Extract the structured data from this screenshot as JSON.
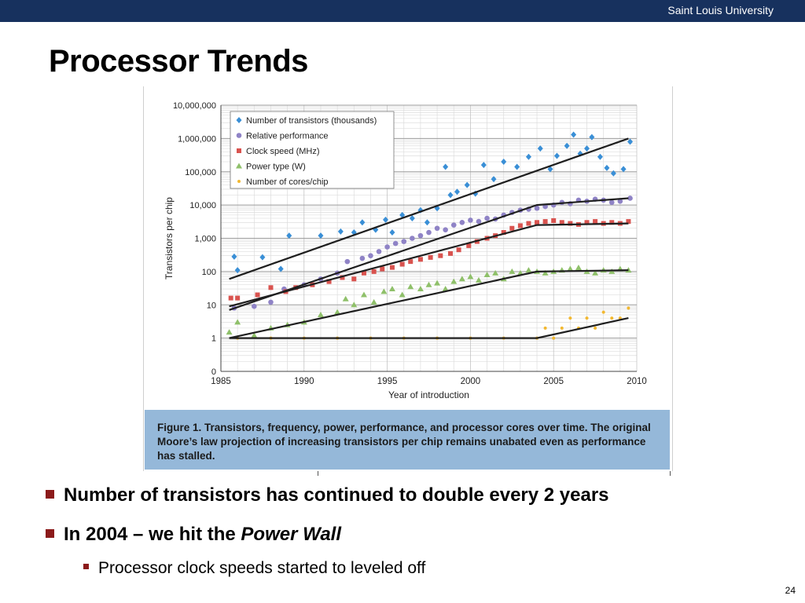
{
  "header": {
    "university": "Saint Louis University"
  },
  "slide": {
    "title": "Processor Trends",
    "bullets": [
      {
        "text": "Number of transistors has continued to double every 2 years"
      },
      {
        "text": "In 2004 – we hit the ",
        "emph": "Power Wall"
      }
    ],
    "subbullet": "Processor clock speeds started to leveled off",
    "page_number": "24"
  },
  "figure": {
    "caption_label": "Figure 1.",
    "caption_text": "Transistors, frequency, power, performance, and processor cores over time. The original Moore’s law projection of increasing transistors per chip remains unabated even as performance has stalled."
  },
  "chart_data": {
    "type": "scatter",
    "title": "",
    "xlabel": "Year of introduction",
    "ylabel": "Transistors per chip",
    "y_scale": "log",
    "xlim": [
      1985,
      2010
    ],
    "ylim": [
      0.1,
      10000000
    ],
    "x_ticks": [
      1985,
      1990,
      1995,
      2000,
      2005,
      2010
    ],
    "y_ticks": [
      {
        "v": 10000000,
        "label": "10,000,000"
      },
      {
        "v": 1000000,
        "label": "1,000,000"
      },
      {
        "v": 100000,
        "label": "100,000"
      },
      {
        "v": 10000,
        "label": "10,000"
      },
      {
        "v": 1000,
        "label": "1,000"
      },
      {
        "v": 100,
        "label": "100"
      },
      {
        "v": 10,
        "label": "10"
      },
      {
        "v": 1,
        "label": "1"
      },
      {
        "v": 0.1,
        "label": "0"
      }
    ],
    "grid": true,
    "legend_position": "top-left",
    "series": [
      {
        "name": "Number of transistors (thousands)",
        "color": "#3a8fd6",
        "marker": "diamond",
        "points": [
          [
            1985.8,
            280
          ],
          [
            1986,
            110
          ],
          [
            1987.5,
            270
          ],
          [
            1988.6,
            120
          ],
          [
            1989.1,
            1200
          ],
          [
            1991,
            1200
          ],
          [
            1992.2,
            1600
          ],
          [
            1993,
            1500
          ],
          [
            1993.5,
            3000
          ],
          [
            1994.3,
            1800
          ],
          [
            1994.9,
            3600
          ],
          [
            1995.3,
            1500
          ],
          [
            1995.9,
            5000
          ],
          [
            1996.5,
            4000
          ],
          [
            1997,
            7000
          ],
          [
            1997.4,
            3000
          ],
          [
            1998,
            8000
          ],
          [
            1998.5,
            140000
          ],
          [
            1998.8,
            20000
          ],
          [
            1999.2,
            25000
          ],
          [
            1999.8,
            40000
          ],
          [
            2000.3,
            22000
          ],
          [
            2000.8,
            160000
          ],
          [
            2001.4,
            60000
          ],
          [
            2002,
            200000
          ],
          [
            2002.8,
            140000
          ],
          [
            2003.5,
            280000
          ],
          [
            2004.2,
            500000
          ],
          [
            2004.8,
            120000
          ],
          [
            2005.2,
            300000
          ],
          [
            2005.8,
            600000
          ],
          [
            2006.2,
            1300000
          ],
          [
            2006.6,
            350000
          ],
          [
            2007,
            500000
          ],
          [
            2007.3,
            1100000
          ],
          [
            2007.8,
            280000
          ],
          [
            2008.2,
            130000
          ],
          [
            2008.6,
            90000
          ],
          [
            2009.2,
            120000
          ],
          [
            2009.6,
            800000
          ]
        ]
      },
      {
        "name": "Relative performance",
        "color": "#8f83c6",
        "marker": "circle",
        "points": [
          [
            1985.8,
            8
          ],
          [
            1987,
            9
          ],
          [
            1988,
            12
          ],
          [
            1988.8,
            30
          ],
          [
            1990,
            40
          ],
          [
            1991,
            60
          ],
          [
            1992,
            90
          ],
          [
            1992.6,
            200
          ],
          [
            1993.5,
            250
          ],
          [
            1994,
            300
          ],
          [
            1994.5,
            400
          ],
          [
            1995,
            550
          ],
          [
            1995.5,
            700
          ],
          [
            1996,
            800
          ],
          [
            1996.5,
            1000
          ],
          [
            1997,
            1200
          ],
          [
            1997.5,
            1500
          ],
          [
            1998,
            2000
          ],
          [
            1998.5,
            1800
          ],
          [
            1999,
            2500
          ],
          [
            1999.5,
            3000
          ],
          [
            2000,
            3500
          ],
          [
            2000.5,
            3200
          ],
          [
            2001,
            4000
          ],
          [
            2001.5,
            3800
          ],
          [
            2002,
            5000
          ],
          [
            2002.5,
            6000
          ],
          [
            2003,
            7000
          ],
          [
            2003.5,
            7500
          ],
          [
            2004,
            8000
          ],
          [
            2004.5,
            9000
          ],
          [
            2005,
            10000
          ],
          [
            2005.5,
            12000
          ],
          [
            2006,
            11000
          ],
          [
            2006.5,
            14000
          ],
          [
            2007,
            13000
          ],
          [
            2007.5,
            15000
          ],
          [
            2008,
            14000
          ],
          [
            2008.5,
            12000
          ],
          [
            2009,
            13000
          ],
          [
            2009.6,
            16000
          ]
        ]
      },
      {
        "name": "Clock speed (MHz)",
        "color": "#d9534f",
        "marker": "square",
        "points": [
          [
            1985.6,
            16
          ],
          [
            1986,
            16
          ],
          [
            1987.2,
            20
          ],
          [
            1988,
            33
          ],
          [
            1988.9,
            25
          ],
          [
            1989.5,
            33
          ],
          [
            1990.5,
            40
          ],
          [
            1991.5,
            50
          ],
          [
            1992.3,
            66
          ],
          [
            1993,
            60
          ],
          [
            1993.6,
            90
          ],
          [
            1994.2,
            100
          ],
          [
            1994.7,
            120
          ],
          [
            1995.3,
            133
          ],
          [
            1995.9,
            166
          ],
          [
            1996.4,
            200
          ],
          [
            1997,
            233
          ],
          [
            1997.6,
            266
          ],
          [
            1998.2,
            300
          ],
          [
            1998.8,
            350
          ],
          [
            1999.3,
            450
          ],
          [
            1999.9,
            600
          ],
          [
            2000.4,
            800
          ],
          [
            2001,
            1000
          ],
          [
            2001.5,
            1200
          ],
          [
            2002,
            1500
          ],
          [
            2002.5,
            2000
          ],
          [
            2003,
            2400
          ],
          [
            2003.5,
            2800
          ],
          [
            2004,
            3000
          ],
          [
            2004.5,
            3200
          ],
          [
            2005,
            3400
          ],
          [
            2005.5,
            3000
          ],
          [
            2006,
            2800
          ],
          [
            2006.5,
            2600
          ],
          [
            2007,
            3000
          ],
          [
            2007.5,
            3200
          ],
          [
            2008,
            2800
          ],
          [
            2008.5,
            3000
          ],
          [
            2009,
            2800
          ],
          [
            2009.5,
            3200
          ]
        ]
      },
      {
        "name": "Power type (W)",
        "color": "#8fc06a",
        "marker": "triangle",
        "points": [
          [
            1985.5,
            1.5
          ],
          [
            1986,
            3
          ],
          [
            1987,
            1.2
          ],
          [
            1988,
            2
          ],
          [
            1989,
            2.5
          ],
          [
            1990,
            3
          ],
          [
            1991,
            5
          ],
          [
            1992,
            6
          ],
          [
            1992.5,
            15
          ],
          [
            1993,
            10
          ],
          [
            1993.6,
            20
          ],
          [
            1994.2,
            12
          ],
          [
            1994.8,
            25
          ],
          [
            1995.3,
            30
          ],
          [
            1995.9,
            20
          ],
          [
            1996.4,
            35
          ],
          [
            1997,
            30
          ],
          [
            1997.5,
            40
          ],
          [
            1998,
            45
          ],
          [
            1998.5,
            30
          ],
          [
            1999,
            50
          ],
          [
            1999.5,
            60
          ],
          [
            2000,
            70
          ],
          [
            2000.5,
            55
          ],
          [
            2001,
            80
          ],
          [
            2001.5,
            90
          ],
          [
            2002,
            60
          ],
          [
            2002.5,
            100
          ],
          [
            2003,
            90
          ],
          [
            2003.5,
            110
          ],
          [
            2004,
            100
          ],
          [
            2004.5,
            90
          ],
          [
            2005,
            100
          ],
          [
            2005.5,
            110
          ],
          [
            2006,
            120
          ],
          [
            2006.5,
            130
          ],
          [
            2007,
            100
          ],
          [
            2007.5,
            90
          ],
          [
            2008,
            110
          ],
          [
            2008.5,
            100
          ],
          [
            2009,
            120
          ],
          [
            2009.5,
            110
          ]
        ]
      },
      {
        "name": "Number of cores/chip",
        "color": "#f2b830",
        "marker": "circle-small",
        "points": [
          [
            1986,
            1
          ],
          [
            1988,
            1
          ],
          [
            1990,
            1
          ],
          [
            1992,
            1
          ],
          [
            1994,
            1
          ],
          [
            1996,
            1
          ],
          [
            1998,
            1
          ],
          [
            2000,
            1
          ],
          [
            2002,
            1
          ],
          [
            2004,
            1
          ],
          [
            2004.5,
            2
          ],
          [
            2005,
            1
          ],
          [
            2005.5,
            2
          ],
          [
            2006,
            4
          ],
          [
            2006.5,
            2
          ],
          [
            2007,
            4
          ],
          [
            2007.5,
            2
          ],
          [
            2008,
            6
          ],
          [
            2008.5,
            4
          ],
          [
            2009,
            4
          ],
          [
            2009.5,
            8
          ]
        ]
      }
    ],
    "trend_lines": [
      {
        "series": "Number of transistors (thousands)",
        "points": [
          [
            1985.5,
            60
          ],
          [
            2009.5,
            1000000
          ]
        ]
      },
      {
        "series": "Relative performance",
        "points": [
          [
            1985.5,
            7
          ],
          [
            2004,
            10000
          ],
          [
            2009.5,
            16000
          ]
        ]
      },
      {
        "series": "Clock speed (MHz)",
        "points": [
          [
            1985.5,
            9
          ],
          [
            2004,
            2500
          ],
          [
            2009.5,
            2800
          ]
        ]
      },
      {
        "series": "Power type (W)",
        "points": [
          [
            1985.5,
            1
          ],
          [
            2004,
            100
          ],
          [
            2009.5,
            110
          ]
        ]
      },
      {
        "series": "Number of cores/chip",
        "points": [
          [
            1985.5,
            1
          ],
          [
            2004,
            1
          ],
          [
            2009.5,
            4
          ]
        ]
      }
    ]
  }
}
